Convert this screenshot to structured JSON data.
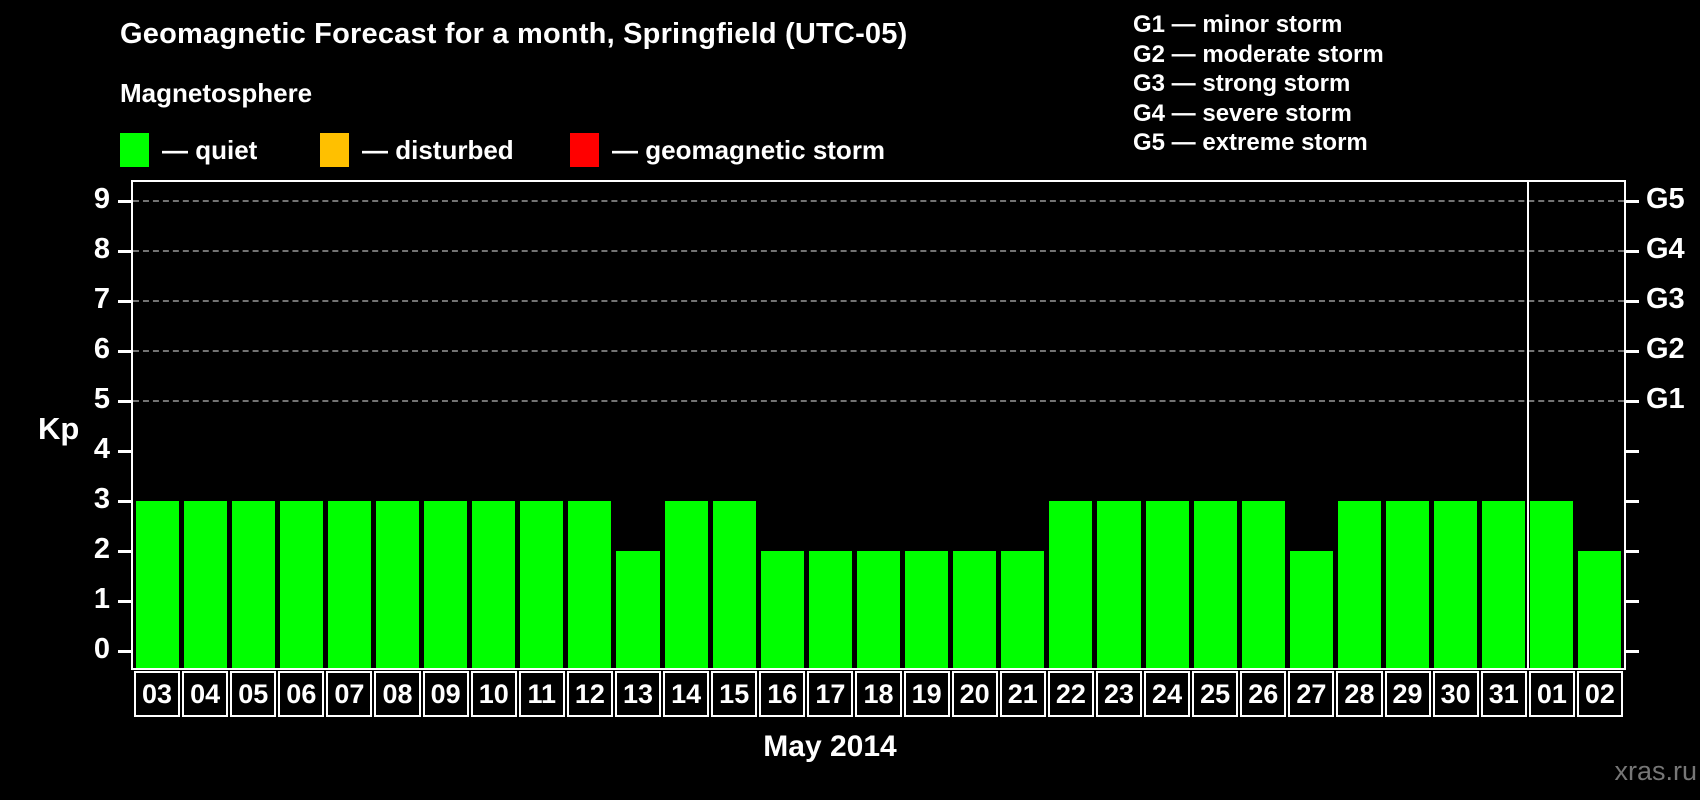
{
  "header": {
    "title": "Geomagnetic Forecast for a month, Springfield (UTC-05)",
    "subtitle": "Magnetosphere"
  },
  "legend": {
    "items": [
      {
        "name": "quiet",
        "color": "#00ff00",
        "label": "— quiet"
      },
      {
        "name": "disturbed",
        "color": "#ffc000",
        "label": "— disturbed"
      },
      {
        "name": "storm",
        "color": "#ff0000",
        "label": "— geomagnetic storm"
      }
    ]
  },
  "g_legend": {
    "items": [
      "G1 — minor storm",
      "G2 — moderate storm",
      "G3 — strong storm",
      "G4 — severe storm",
      "G5 — extreme storm"
    ]
  },
  "chart_data": {
    "type": "bar",
    "title": "Geomagnetic Forecast for a month, Springfield (UTC-05)",
    "ylabel": "Kp",
    "xlabel": "May 2014",
    "categories": [
      "03",
      "04",
      "05",
      "06",
      "07",
      "08",
      "09",
      "10",
      "11",
      "12",
      "13",
      "14",
      "15",
      "16",
      "17",
      "18",
      "19",
      "20",
      "21",
      "22",
      "23",
      "24",
      "25",
      "26",
      "27",
      "28",
      "29",
      "30",
      "31",
      "01",
      "02"
    ],
    "values": [
      3,
      3,
      3,
      3,
      3,
      3,
      3,
      3,
      3,
      3,
      2,
      3,
      3,
      2,
      2,
      2,
      2,
      2,
      2,
      3,
      3,
      3,
      3,
      3,
      2,
      3,
      3,
      3,
      3,
      3,
      2
    ],
    "bar_color": "#00ff00",
    "ylim": [
      0,
      9
    ],
    "yticks": [
      0,
      1,
      2,
      3,
      4,
      5,
      6,
      7,
      8,
      9
    ],
    "gridlines_at": [
      5,
      6,
      7,
      8,
      9
    ],
    "right_axis": {
      "ticks": [
        5,
        6,
        7,
        8,
        9
      ],
      "labels": [
        "G1",
        "G2",
        "G3",
        "G4",
        "G5"
      ]
    },
    "month_separator_before_index": 29,
    "colors": {
      "axis": "#ffffff",
      "grid": "#9a9a9a",
      "background": "#000000",
      "separator": "#ffffff"
    }
  },
  "footer": {
    "month_label": "May 2014",
    "watermark": "xras.ru"
  }
}
